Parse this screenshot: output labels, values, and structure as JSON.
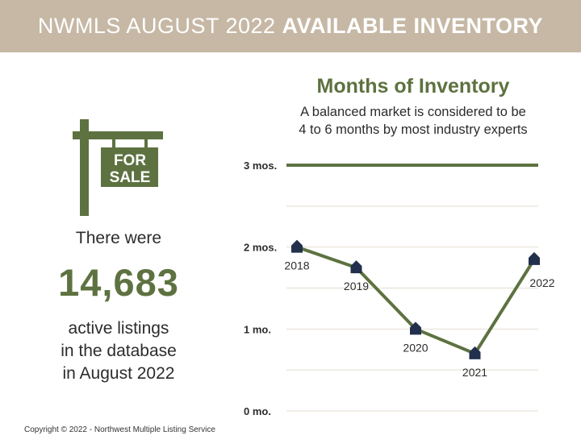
{
  "header": {
    "title_regular": "NWMLS AUGUST 2022",
    "title_bold": "AVAILABLE INVENTORY"
  },
  "sign": {
    "line1": "FOR",
    "line2": "SALE",
    "icon": "for-sale-sign-icon"
  },
  "listings": {
    "lead": "There were",
    "count": "14,683",
    "line1": "active listings",
    "line2": "in the database",
    "line3": "in August 2022"
  },
  "colors": {
    "banner": "#c6b8a5",
    "accent_green": "#5d7240",
    "marker_navy": "#22304d",
    "gridline": "#e4ddd2"
  },
  "chart_data": {
    "type": "line",
    "title": "Months of Inventory",
    "subtitle_line1": "A balanced market is considered to be",
    "subtitle_line2": "4 to 6 months by most industry experts",
    "x": [
      "2018",
      "2019",
      "2020",
      "2021",
      "2022"
    ],
    "series": [
      {
        "values": [
          2.0,
          1.75,
          1.0,
          0.7,
          1.85
        ]
      }
    ],
    "reference_line": {
      "value": 3.0
    },
    "y_ticks": [
      {
        "value": 3,
        "label": "3 mos."
      },
      {
        "value": 2,
        "label": "2 mos."
      },
      {
        "value": 1,
        "label": "1 mo."
      },
      {
        "value": 0,
        "label": "0 mo."
      }
    ],
    "ylim": [
      0,
      3
    ],
    "grid": true,
    "marker": "house-icon"
  },
  "footer": {
    "copyright": "Copyright © 2022 - Northwest Multiple Listing Service"
  }
}
